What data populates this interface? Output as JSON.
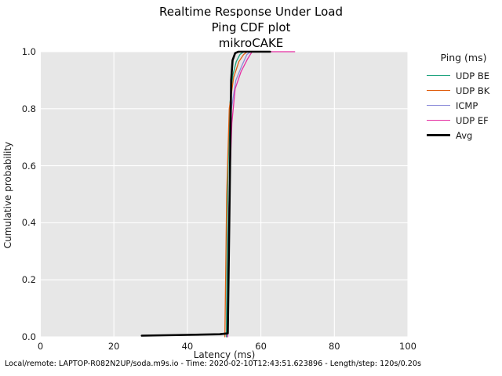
{
  "title": {
    "line1": "Realtime Response Under Load",
    "line2": "Ping CDF plot",
    "line3": "mikroCAKE"
  },
  "footer": "Local/remote: LAPTOP-R082N2UP/soda.m9s.io - Time: 2020-02-10T12:43:51.623896 - Length/step: 120s/0.20s",
  "chart_data": {
    "type": "line",
    "subtype": "cdf",
    "title": "Realtime Response Under Load / Ping CDF plot / mikroCAKE",
    "xlabel": "Latency (ms)",
    "ylabel": "Cumulative probability",
    "xlim": [
      0,
      100
    ],
    "ylim": [
      0.0,
      1.0
    ],
    "xticks": [
      0,
      20,
      40,
      60,
      80,
      100
    ],
    "yticks": [
      "0.0",
      "0.2",
      "0.4",
      "0.6",
      "0.8",
      "1.0"
    ],
    "grid": true,
    "plot_bg_color": "#e7e7e7",
    "grid_color": "#ffffff",
    "legend": {
      "title": "Ping (ms)",
      "position": "right",
      "frame": false
    },
    "series": [
      {
        "name": "UDP BE",
        "color": "#1aa17c",
        "line_width": 1.3,
        "points": [
          [
            50.6,
            0.0
          ],
          [
            51.0,
            0.55
          ],
          [
            51.6,
            0.82
          ],
          [
            52.4,
            0.92
          ],
          [
            53.3,
            0.965
          ],
          [
            54.3,
            0.99
          ],
          [
            55.3,
            1.0
          ],
          [
            58.0,
            1.0
          ]
        ]
      },
      {
        "name": "UDP BK",
        "color": "#e06010",
        "line_width": 1.3,
        "points": [
          [
            50.2,
            0.0
          ],
          [
            50.7,
            0.5
          ],
          [
            51.4,
            0.8
          ],
          [
            52.6,
            0.91
          ],
          [
            54.0,
            0.965
          ],
          [
            55.3,
            0.99
          ],
          [
            56.3,
            1.0
          ],
          [
            58.5,
            1.0
          ]
        ]
      },
      {
        "name": "ICMP",
        "color": "#8c8cd9",
        "line_width": 1.3,
        "points": [
          [
            51.0,
            0.0
          ],
          [
            51.4,
            0.5
          ],
          [
            52.0,
            0.8
          ],
          [
            53.2,
            0.9
          ],
          [
            54.8,
            0.95
          ],
          [
            56.2,
            0.99
          ],
          [
            57.2,
            1.0
          ],
          [
            59.0,
            1.0
          ]
        ]
      },
      {
        "name": "UDP EF",
        "color": "#e62fa2",
        "line_width": 1.3,
        "points": [
          [
            50.9,
            0.0
          ],
          [
            51.3,
            0.45
          ],
          [
            52.1,
            0.75
          ],
          [
            53.0,
            0.87
          ],
          [
            54.6,
            0.93
          ],
          [
            56.4,
            0.975
          ],
          [
            57.6,
            1.0
          ],
          [
            69.2,
            1.0
          ]
        ]
      },
      {
        "name": "Avg",
        "color": "#000000",
        "line_width": 2.6,
        "points": [
          [
            27.6,
            0.004
          ],
          [
            40.0,
            0.007
          ],
          [
            48.8,
            0.009
          ],
          [
            51.0,
            0.012
          ],
          [
            51.5,
            0.5
          ],
          [
            51.9,
            0.9
          ],
          [
            52.3,
            0.97
          ],
          [
            53.0,
            0.995
          ],
          [
            53.9,
            1.0
          ],
          [
            62.5,
            1.0
          ]
        ]
      }
    ]
  }
}
